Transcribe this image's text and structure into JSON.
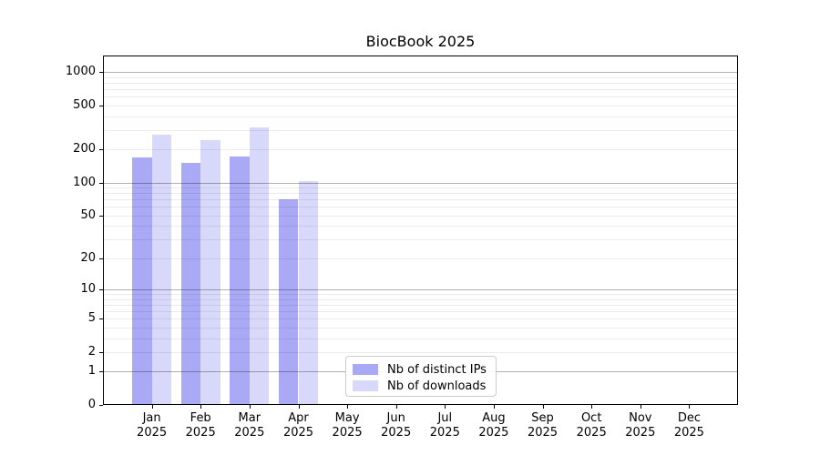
{
  "chart_data": {
    "type": "bar",
    "title": "BiocBook 2025",
    "categories": [
      "Jan",
      "Feb",
      "Mar",
      "Apr",
      "May",
      "Jun",
      "Jul",
      "Aug",
      "Sep",
      "Oct",
      "Nov",
      "Dec"
    ],
    "year_label": "2025",
    "series": [
      {
        "name": "Nb of distinct IPs",
        "color": "#a9a9f5",
        "values": [
          170,
          150,
          172,
          70,
          null,
          null,
          null,
          null,
          null,
          null,
          null,
          null
        ]
      },
      {
        "name": "Nb of downloads",
        "color": "#d8d8fa",
        "values": [
          270,
          245,
          318,
          103,
          null,
          null,
          null,
          null,
          null,
          null,
          null,
          null
        ]
      }
    ],
    "yscale": "log1p",
    "yticks": [
      0,
      1,
      2,
      5,
      10,
      20,
      50,
      100,
      200,
      500,
      1000
    ],
    "ylim": [
      0,
      1412
    ],
    "xlabel": "",
    "ylabel": "",
    "grid": "horizontal major+minor",
    "legend_position": "lower center inside plot"
  },
  "colors": {
    "background": "#ffffff",
    "axis": "#000000",
    "major_grid": "#b0b0b0",
    "minor_grid": "#ebebeb",
    "legend_border": "#cccccc",
    "text": "#000000"
  }
}
